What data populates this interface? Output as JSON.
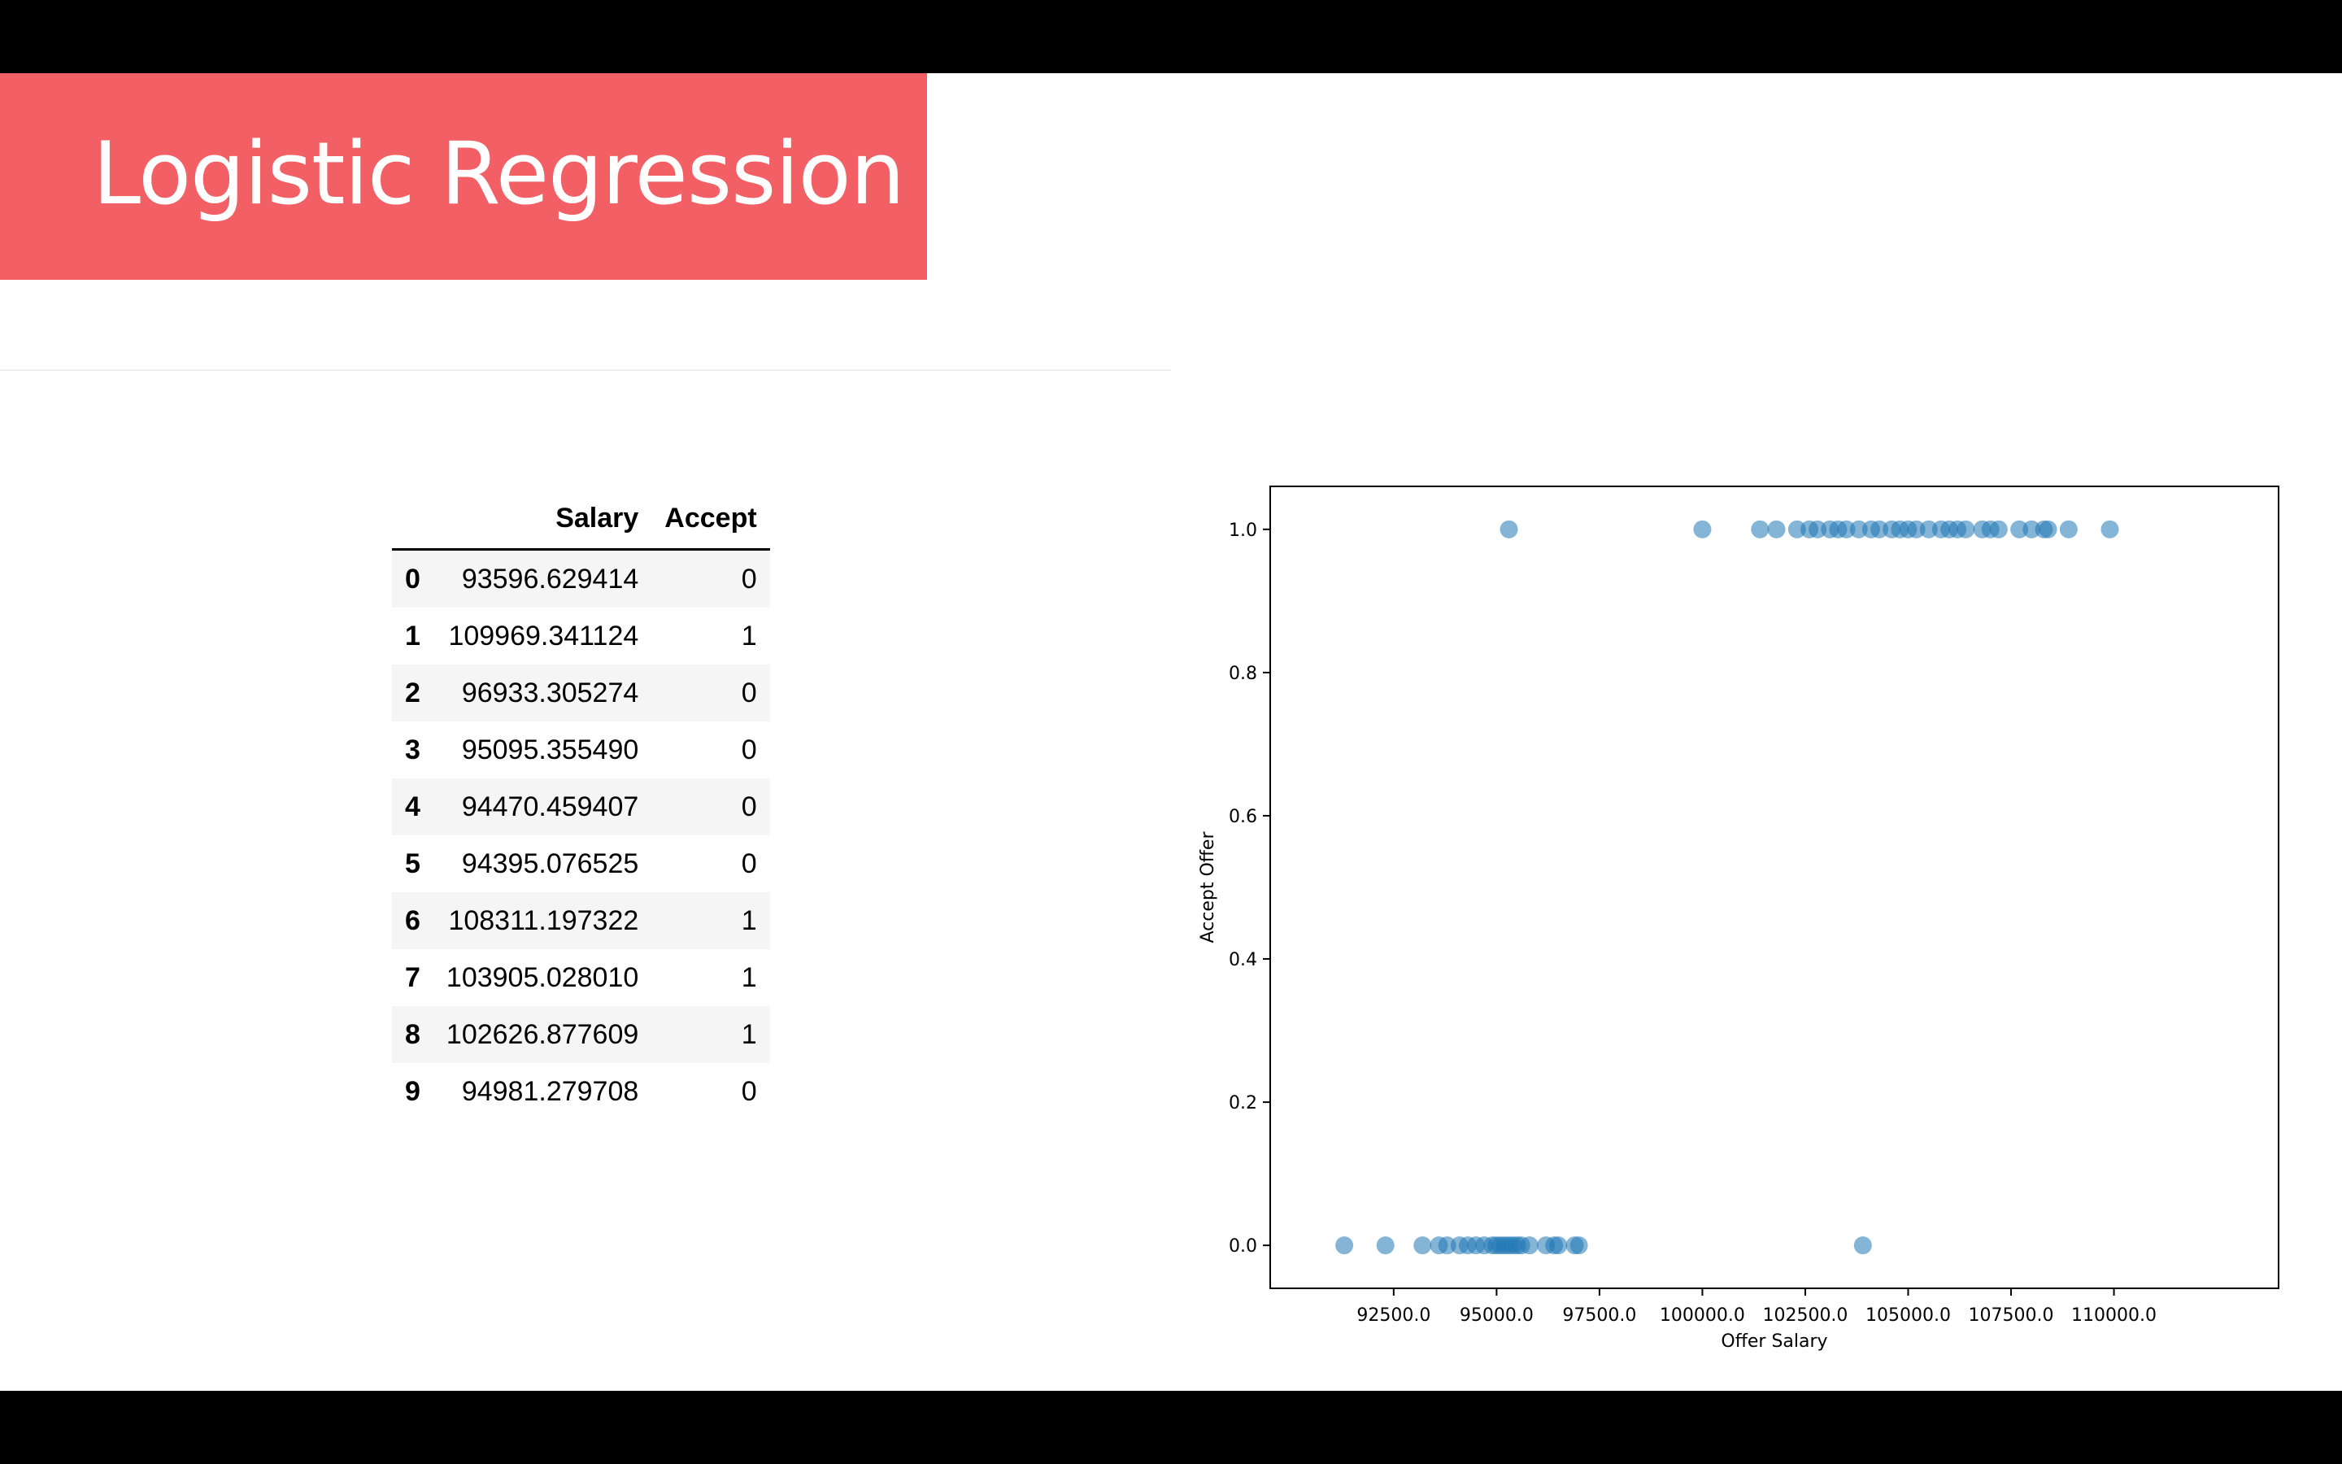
{
  "slide": {
    "title": "Logistic Regression"
  },
  "table": {
    "columns": [
      "Salary",
      "Accept"
    ],
    "rows": [
      {
        "index": "0",
        "salary": "93596.629414",
        "accept": "0"
      },
      {
        "index": "1",
        "salary": "109969.341124",
        "accept": "1"
      },
      {
        "index": "2",
        "salary": "96933.305274",
        "accept": "0"
      },
      {
        "index": "3",
        "salary": "95095.355490",
        "accept": "0"
      },
      {
        "index": "4",
        "salary": "94470.459407",
        "accept": "0"
      },
      {
        "index": "5",
        "salary": "94395.076525",
        "accept": "0"
      },
      {
        "index": "6",
        "salary": "108311.197322",
        "accept": "1"
      },
      {
        "index": "7",
        "salary": "103905.028010",
        "accept": "1"
      },
      {
        "index": "8",
        "salary": "102626.877609",
        "accept": "1"
      },
      {
        "index": "9",
        "salary": "94981.279708",
        "accept": "0"
      }
    ]
  },
  "colors": {
    "title_bar": "#f26065",
    "point": "#1f77b4"
  },
  "chart_data": {
    "type": "scatter",
    "title": "",
    "xlabel": "Offer Salary",
    "ylabel": "Accept Offer",
    "xlim": [
      89500,
      114000
    ],
    "ylim": [
      -0.06,
      1.06
    ],
    "xticks": [
      92500,
      95000,
      97500,
      100000,
      102500,
      105000,
      107500,
      110000
    ],
    "xtick_labels": [
      "92500.0",
      "95000.0",
      "97500.0",
      "100000.0",
      "102500.0",
      "105000.0",
      "107500.0",
      "110000.0"
    ],
    "yticks": [
      0.0,
      0.2,
      0.4,
      0.6,
      0.8,
      1.0
    ],
    "ytick_labels": [
      "0.0",
      "0.2",
      "0.4",
      "0.6",
      "0.8",
      "1.0"
    ],
    "grid": false,
    "series": [
      {
        "color": "#1f77b4",
        "points": [
          [
            95300,
            1
          ],
          [
            100000,
            1
          ],
          [
            101400,
            1
          ],
          [
            101800,
            1
          ],
          [
            102300,
            1
          ],
          [
            102600,
            1
          ],
          [
            102800,
            1
          ],
          [
            103100,
            1
          ],
          [
            103300,
            1
          ],
          [
            103500,
            1
          ],
          [
            103800,
            1
          ],
          [
            104100,
            1
          ],
          [
            104300,
            1
          ],
          [
            104600,
            1
          ],
          [
            104800,
            1
          ],
          [
            105000,
            1
          ],
          [
            105200,
            1
          ],
          [
            105500,
            1
          ],
          [
            105800,
            1
          ],
          [
            106000,
            1
          ],
          [
            106200,
            1
          ],
          [
            106400,
            1
          ],
          [
            106800,
            1
          ],
          [
            107000,
            1
          ],
          [
            107200,
            1
          ],
          [
            107700,
            1
          ],
          [
            108000,
            1
          ],
          [
            108300,
            1
          ],
          [
            108400,
            1
          ],
          [
            108900,
            1
          ],
          [
            109900,
            1
          ],
          [
            91300,
            0
          ],
          [
            92300,
            0
          ],
          [
            93200,
            0
          ],
          [
            93600,
            0
          ],
          [
            93800,
            0
          ],
          [
            94100,
            0
          ],
          [
            94300,
            0
          ],
          [
            94500,
            0
          ],
          [
            94700,
            0
          ],
          [
            94900,
            0
          ],
          [
            95000,
            0
          ],
          [
            95100,
            0
          ],
          [
            95200,
            0
          ],
          [
            95300,
            0
          ],
          [
            95400,
            0
          ],
          [
            95500,
            0
          ],
          [
            95600,
            0
          ],
          [
            95800,
            0
          ],
          [
            96200,
            0
          ],
          [
            96400,
            0
          ],
          [
            96500,
            0
          ],
          [
            96900,
            0
          ],
          [
            97000,
            0
          ],
          [
            103900,
            0
          ]
        ]
      }
    ]
  }
}
